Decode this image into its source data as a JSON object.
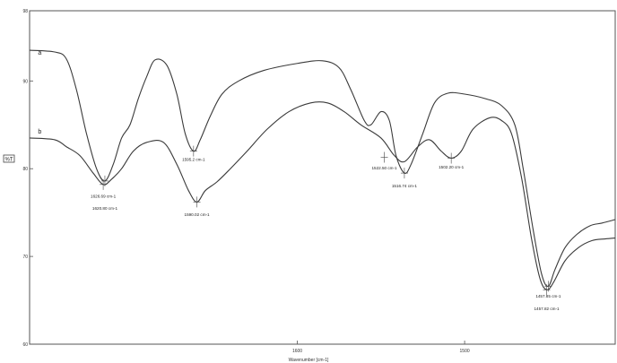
{
  "chart_data": {
    "type": "line",
    "title": "",
    "xlabel": "Wavenumber [cm-1]",
    "ylabel": "%T",
    "xlim": [
      1760,
      1410
    ],
    "ylim": [
      60,
      98
    ],
    "x_ticks": [
      1600,
      1500
    ],
    "y_ticks": [
      60,
      70,
      80,
      90,
      98
    ],
    "grid": false,
    "series": [
      {
        "name": "a",
        "label_at": [
          1755,
          93
        ],
        "points": [
          [
            1760,
            93.5
          ],
          [
            1745,
            93.3
          ],
          [
            1738,
            92.5
          ],
          [
            1732,
            89
          ],
          [
            1726,
            84
          ],
          [
            1720,
            80
          ],
          [
            1715,
            78.6
          ],
          [
            1710,
            80.5
          ],
          [
            1705,
            83.5
          ],
          [
            1700,
            85
          ],
          [
            1695,
            88
          ],
          [
            1690,
            90.5
          ],
          [
            1685,
            92.4
          ],
          [
            1678,
            91.8
          ],
          [
            1672,
            88.5
          ],
          [
            1667,
            84
          ],
          [
            1662,
            82
          ],
          [
            1658,
            83.3
          ],
          [
            1652,
            86
          ],
          [
            1645,
            88.5
          ],
          [
            1635,
            90
          ],
          [
            1620,
            91.2
          ],
          [
            1600,
            92
          ],
          [
            1585,
            92.3
          ],
          [
            1575,
            91.5
          ],
          [
            1568,
            89
          ],
          [
            1560,
            85.5
          ],
          [
            1556,
            85
          ],
          [
            1550,
            86.5
          ],
          [
            1545,
            85.5
          ],
          [
            1541,
            81.5
          ],
          [
            1536,
            79.5
          ],
          [
            1532,
            80.5
          ],
          [
            1525,
            84
          ],
          [
            1518,
            87.5
          ],
          [
            1510,
            88.6
          ],
          [
            1500,
            88.5
          ],
          [
            1488,
            88
          ],
          [
            1478,
            87.2
          ],
          [
            1470,
            85
          ],
          [
            1465,
            80
          ],
          [
            1459,
            73
          ],
          [
            1454,
            68
          ],
          [
            1450,
            66.6
          ],
          [
            1446,
            68.5
          ],
          [
            1440,
            71
          ],
          [
            1433,
            72.5
          ],
          [
            1425,
            73.5
          ],
          [
            1418,
            73.8
          ],
          [
            1410,
            74.2
          ]
        ]
      },
      {
        "name": "b",
        "label_at": [
          1755,
          84
        ],
        "points": [
          [
            1760,
            83.5
          ],
          [
            1745,
            83.3
          ],
          [
            1738,
            82.5
          ],
          [
            1730,
            81.5
          ],
          [
            1722,
            79.5
          ],
          [
            1716,
            78.2
          ],
          [
            1711,
            78.8
          ],
          [
            1705,
            80
          ],
          [
            1698,
            82
          ],
          [
            1690,
            83
          ],
          [
            1680,
            83
          ],
          [
            1672,
            80.5
          ],
          [
            1665,
            77.5
          ],
          [
            1660,
            76.2
          ],
          [
            1655,
            77.5
          ],
          [
            1648,
            78.5
          ],
          [
            1640,
            80
          ],
          [
            1630,
            82
          ],
          [
            1618,
            84.5
          ],
          [
            1605,
            86.5
          ],
          [
            1592,
            87.5
          ],
          [
            1582,
            87.5
          ],
          [
            1572,
            86.5
          ],
          [
            1562,
            85
          ],
          [
            1550,
            83.5
          ],
          [
            1542,
            81.5
          ],
          [
            1536,
            80.8
          ],
          [
            1528,
            82.5
          ],
          [
            1521,
            83.3
          ],
          [
            1514,
            82
          ],
          [
            1508,
            81.2
          ],
          [
            1502,
            82
          ],
          [
            1495,
            84.5
          ],
          [
            1485,
            85.8
          ],
          [
            1478,
            85.5
          ],
          [
            1472,
            84
          ],
          [
            1466,
            79
          ],
          [
            1460,
            72
          ],
          [
            1455,
            67.5
          ],
          [
            1451,
            66.2
          ],
          [
            1447,
            67
          ],
          [
            1440,
            69.5
          ],
          [
            1432,
            71
          ],
          [
            1424,
            71.8
          ],
          [
            1416,
            72
          ],
          [
            1410,
            72.1
          ]
        ]
      }
    ],
    "annotations": [
      {
        "text": "1626.69 cm-1",
        "x": 1716,
        "y": 78.2,
        "label_y": 76.7
      },
      {
        "text": "1620.80 cm-1",
        "x": 1715,
        "y": 78.6,
        "label_y": 75.3
      },
      {
        "text": "1595.2 cm-1",
        "x": 1662,
        "y": 82,
        "label_y": 80.9
      },
      {
        "text": "1590.02 cm-1",
        "x": 1660,
        "y": 76.2,
        "label_y": 74.6
      },
      {
        "text": "1522.50 cm-1",
        "x": 1548,
        "y": 81.3,
        "label_y": 79.9
      },
      {
        "text": "1516.74 cm-1",
        "x": 1536,
        "y": 79.5,
        "label_y": 77.9
      },
      {
        "text": "1502.20 cm-1",
        "x": 1508,
        "y": 81.2,
        "label_y": 80.0
      },
      {
        "text": "1457.85 cm-1",
        "x": 1450,
        "y": 66.6,
        "label_y": 65.3
      },
      {
        "text": "1457.82 cm-1",
        "x": 1451,
        "y": 66.2,
        "label_y": 63.9
      }
    ]
  }
}
